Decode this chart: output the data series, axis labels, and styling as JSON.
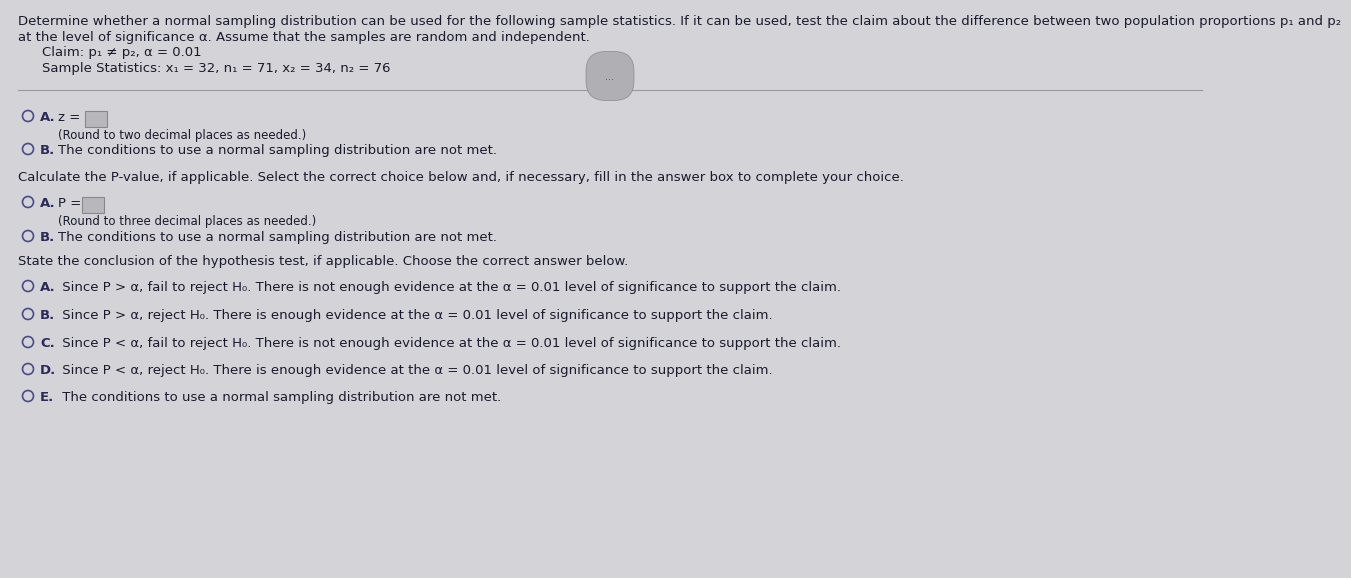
{
  "bg_color": "#d4d4d8",
  "text_color": "#1a1a2e",
  "label_color": "#2a2a5a",
  "circle_color": "#4a4a8a",
  "box_color": "#c8c8cc",
  "title_line1": "Determine whether a normal sampling distribution can be used for the following sample statistics. If it can be used, test the claim about the difference between two population proportions p₁ and p₂",
  "title_line2": "at the level of significance α. Assume that the samples are random and independent.",
  "claim_line": "Claim: p₁ ≠ p₂, α = 0.01",
  "sample_line": "Sample Statistics: x₁ = 32, n₁ = 71, x₂ = 34, n₂ = 76",
  "dots_text": "...",
  "s1a_label": "A.  z =",
  "s1a_sub": "(Round to two decimal places as needed.)",
  "s1b_label": "B.  The conditions to use a normal sampling distribution are not met.",
  "s2_intro": "Calculate the P-value, if applicable. Select the correct choice below and, if necessary, fill in the answer box to complete your choice.",
  "s2a_label": "A.  P =",
  "s2a_sub": "(Round to three decimal places as needed.)",
  "s2b_label": "B.  The conditions to use a normal sampling distribution are not met.",
  "s3_intro": "State the conclusion of the hypothesis test, if applicable. Choose the correct answer below.",
  "optA": "A.  Since P > α, fail to reject H₀. There is not enough evidence at the α = 0.01 level of significance to support the claim.",
  "optB": "B.  Since P > α, reject H₀. There is enough evidence at the α = 0.01 level of significance to support the claim.",
  "optC": "C.  Since P < α, fail to reject H₀. There is not enough evidence at the α = 0.01 level of significance to support the claim.",
  "optD": "D.  Since P < α, reject H₀. There is enough evidence at the α = 0.01 level of significance to support the claim.",
  "optE": "E.  The conditions to use a normal sampling distribution are not met.",
  "fs_title": 9.5,
  "fs_body": 9.5,
  "fs_small": 8.5
}
